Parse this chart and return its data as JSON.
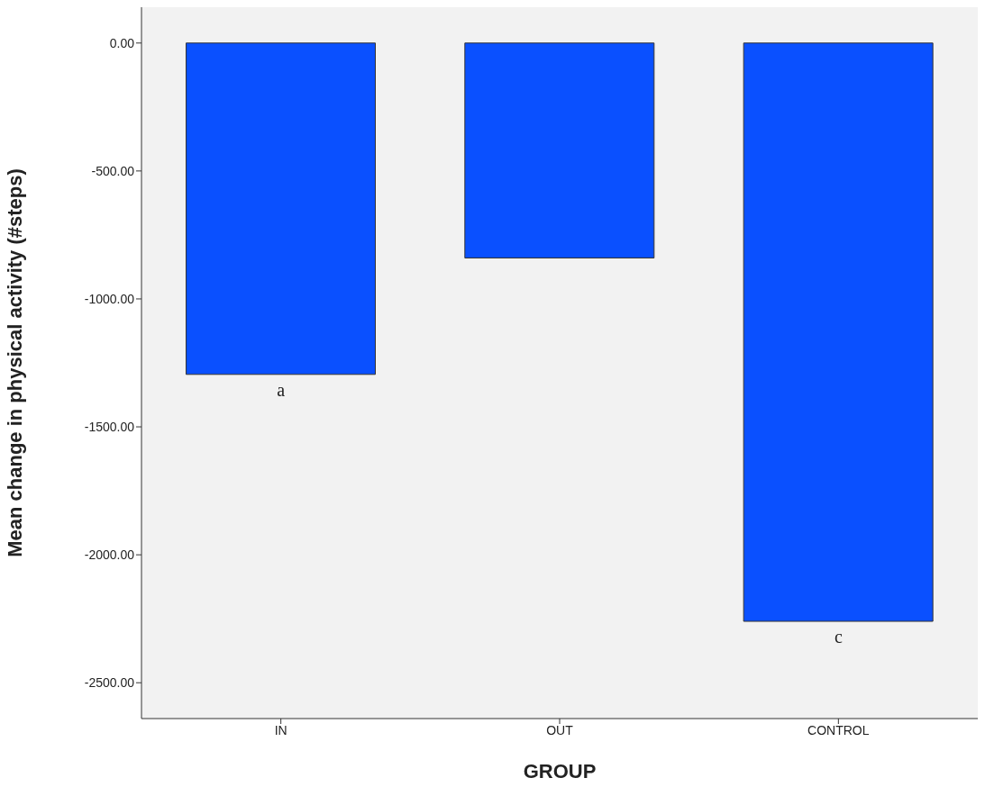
{
  "chart_data": {
    "type": "bar",
    "xlabel": "GROUP",
    "ylabel": "Mean change in physical activity (#steps)",
    "categories": [
      "IN",
      "OUT",
      "CONTROL"
    ],
    "values": [
      -1295,
      -840,
      -2260
    ],
    "color": "#0a50ff",
    "ylim": [
      -2640,
      140
    ],
    "yticks": [
      {
        "value": 0,
        "label": "0.00"
      },
      {
        "value": -500,
        "label": "-500.00"
      },
      {
        "value": -1000,
        "label": "-1000.00"
      },
      {
        "value": -1500,
        "label": "-1500.00"
      },
      {
        "value": -2000,
        "label": "-2000.00"
      },
      {
        "value": -2500,
        "label": "-2500.00"
      }
    ],
    "annotations": [
      {
        "text": "a",
        "x": "IN",
        "y": -1295
      },
      {
        "text": "c",
        "x": "CONTROL",
        "y": -2260
      }
    ],
    "grid": false,
    "legend": false
  }
}
